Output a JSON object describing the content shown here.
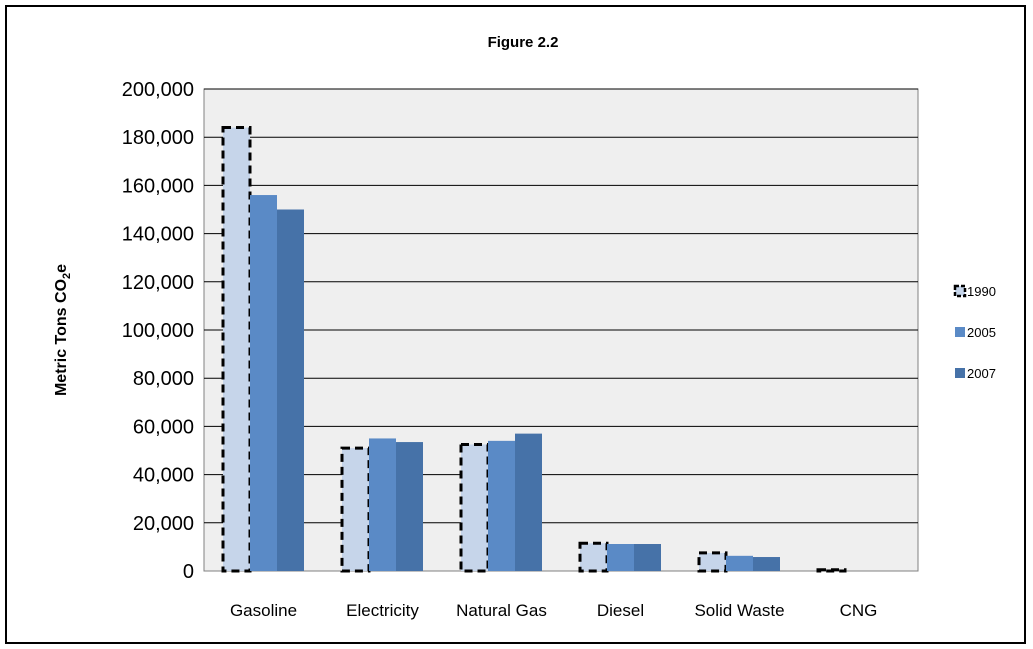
{
  "chart_data": {
    "type": "bar",
    "title": "Figure 2.2",
    "xlabel": "",
    "ylabel": "Metric Tons CO2e",
    "ylabel_main": "Metric  Tons CO",
    "ylabel_sub": "2",
    "ylabel_tail": "e",
    "categories": [
      "Gasoline",
      "Electricity",
      "Natural Gas",
      "Diesel",
      "Solid Waste",
      "CNG"
    ],
    "series": [
      {
        "name": "1990",
        "values": [
          184000,
          51000,
          52500,
          11500,
          7500,
          500
        ],
        "color": "#c6d5ea",
        "style": "dashed-outline"
      },
      {
        "name": "2005",
        "values": [
          156000,
          55000,
          54000,
          11200,
          6300,
          0
        ],
        "color": "#5a8ac6"
      },
      {
        "name": "2007",
        "values": [
          150000,
          53500,
          57000,
          11200,
          5800,
          0
        ],
        "color": "#4672a8"
      }
    ],
    "ylim": [
      0,
      200000
    ],
    "yticks": [
      0,
      20000,
      40000,
      60000,
      80000,
      100000,
      120000,
      140000,
      160000,
      180000,
      200000
    ],
    "ytick_labels": [
      "0",
      "20,000",
      "40,000",
      "60,000",
      "80,000",
      "100,000",
      "120,000",
      "140,000",
      "160,000",
      "180,000",
      "200,000"
    ],
    "grid": true,
    "legend_position": "right",
    "plot_background": "#efefef"
  }
}
